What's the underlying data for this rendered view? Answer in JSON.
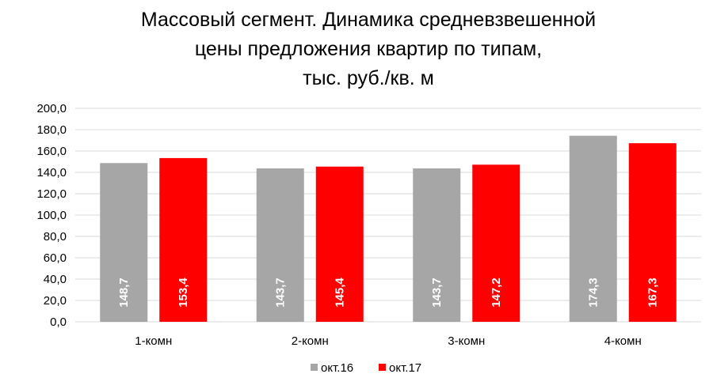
{
  "chart_data": {
    "type": "bar",
    "title_lines": [
      "Массовый сегмент. Динамика средневзвешенной",
      "цены предложения квартир по типам,",
      "тыс. руб./кв. м"
    ],
    "categories": [
      "1-комн",
      "2-комн",
      "3-комн",
      "4-комн"
    ],
    "series": [
      {
        "name": "окт.16",
        "color": "#a6a6a6",
        "values": [
          148.7,
          143.7,
          143.7,
          174.3
        ],
        "labels": [
          "148,7",
          "143,7",
          "143,7",
          "174,3"
        ]
      },
      {
        "name": "окт.17",
        "color": "#ff0000",
        "values": [
          153.4,
          145.4,
          147.2,
          167.3
        ],
        "labels": [
          "153,4",
          "145,4",
          "147,2",
          "167,3"
        ]
      }
    ],
    "ylim": [
      0,
      200
    ],
    "yticks": [
      "0,0",
      "20,0",
      "40,0",
      "60,0",
      "80,0",
      "100,0",
      "120,0",
      "140,0",
      "160,0",
      "180,0",
      "200,0"
    ],
    "grid": true,
    "legend_position": "bottom"
  }
}
